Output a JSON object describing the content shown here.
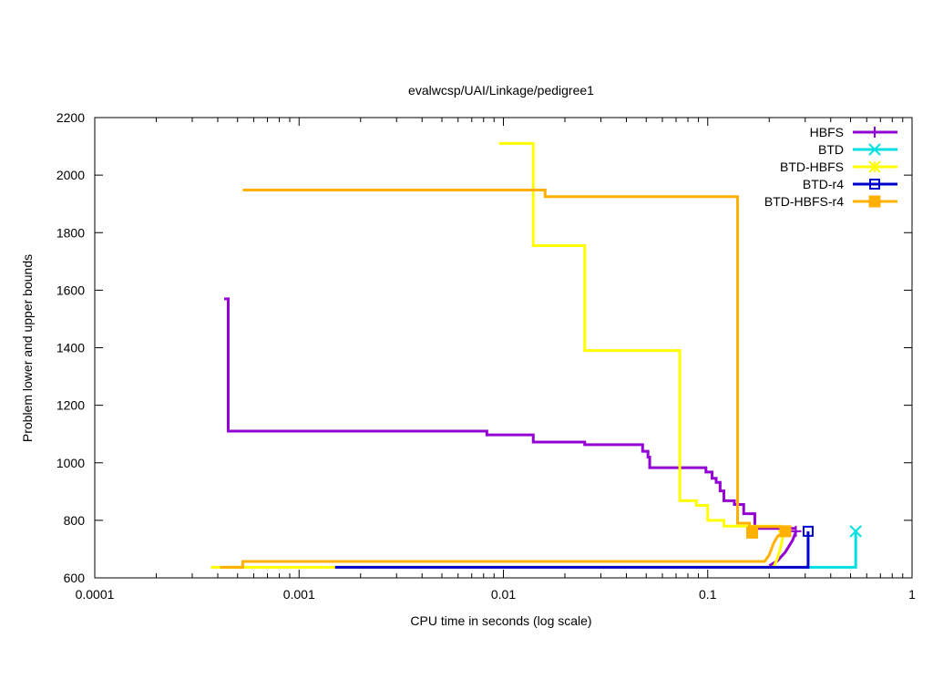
{
  "chart_data": {
    "type": "line",
    "title": "evalwcsp/UAI/Linkage/pedigree1",
    "xlabel": "CPU time in seconds (log scale)",
    "ylabel": "Problem lower and upper bounds",
    "xscale": "log",
    "xlim": [
      0.0001,
      1
    ],
    "ylim": [
      600,
      2200
    ],
    "x_ticks": [
      {
        "value": 0.0001,
        "label": "0.0001"
      },
      {
        "value": 0.001,
        "label": "0.001"
      },
      {
        "value": 0.01,
        "label": "0.01"
      },
      {
        "value": 0.1,
        "label": "0.1"
      },
      {
        "value": 1,
        "label": "1"
      }
    ],
    "y_ticks": [
      {
        "value": 600,
        "label": "600"
      },
      {
        "value": 800,
        "label": "800"
      },
      {
        "value": 1000,
        "label": "1000"
      },
      {
        "value": 1200,
        "label": "1200"
      },
      {
        "value": 1400,
        "label": "1400"
      },
      {
        "value": 1600,
        "label": "1600"
      },
      {
        "value": 1800,
        "label": "1800"
      },
      {
        "value": 2000,
        "label": "2000"
      },
      {
        "value": 2200,
        "label": "2200"
      }
    ],
    "grid": false,
    "legend_position": "top-right",
    "series": [
      {
        "name": "HBFS",
        "color": "#9400d3",
        "marker": "plus",
        "upper": [
          [
            0.00043,
            1570
          ],
          [
            0.00045,
            1570
          ],
          [
            0.00045,
            1110
          ],
          [
            0.0083,
            1110
          ],
          [
            0.0083,
            1097
          ],
          [
            0.014,
            1097
          ],
          [
            0.014,
            1072
          ],
          [
            0.025,
            1072
          ],
          [
            0.025,
            1063
          ],
          [
            0.048,
            1063
          ],
          [
            0.048,
            1040
          ],
          [
            0.051,
            1040
          ],
          [
            0.051,
            1020
          ],
          [
            0.052,
            1020
          ],
          [
            0.052,
            983
          ],
          [
            0.098,
            983
          ],
          [
            0.098,
            968
          ],
          [
            0.105,
            968
          ],
          [
            0.105,
            946
          ],
          [
            0.11,
            946
          ],
          [
            0.11,
            932
          ],
          [
            0.115,
            932
          ],
          [
            0.115,
            902
          ],
          [
            0.12,
            902
          ],
          [
            0.12,
            868
          ],
          [
            0.135,
            868
          ],
          [
            0.135,
            855
          ],
          [
            0.15,
            855
          ],
          [
            0.15,
            823
          ],
          [
            0.17,
            823
          ],
          [
            0.17,
            772
          ],
          [
            0.27,
            772
          ]
        ],
        "lower": [
          [
            0.2,
            642
          ],
          [
            0.22,
            660
          ],
          [
            0.24,
            690
          ],
          [
            0.26,
            730
          ],
          [
            0.27,
            760
          ]
        ],
        "end_point": [
          0.27,
          762
        ]
      },
      {
        "name": "BTD",
        "color": "#00e0e0",
        "marker": "x",
        "upper": [
          [
            0.53,
            762
          ]
        ],
        "lower": [
          [
            0.3,
            637
          ],
          [
            0.53,
            637
          ],
          [
            0.53,
            762
          ]
        ],
        "end_point": [
          0.53,
          762
        ]
      },
      {
        "name": "BTD-HBFS",
        "color": "#ffff00",
        "marker": "star",
        "upper": [
          [
            0.0095,
            2110
          ],
          [
            0.014,
            2110
          ],
          [
            0.014,
            1755
          ],
          [
            0.025,
            1755
          ],
          [
            0.025,
            1390
          ],
          [
            0.073,
            1390
          ],
          [
            0.073,
            868
          ],
          [
            0.088,
            868
          ],
          [
            0.088,
            852
          ],
          [
            0.1,
            852
          ],
          [
            0.1,
            800
          ],
          [
            0.12,
            800
          ],
          [
            0.12,
            780
          ],
          [
            0.23,
            780
          ]
        ],
        "lower": [
          [
            0.00037,
            637
          ],
          [
            0.21,
            637
          ],
          [
            0.22,
            670
          ],
          [
            0.23,
            720
          ],
          [
            0.235,
            762
          ]
        ],
        "end_point": [
          0.235,
          762
        ]
      },
      {
        "name": "BTD-r4",
        "color": "#0000cc",
        "marker": "open-square",
        "upper": [
          [
            0.31,
            762
          ]
        ],
        "lower": [
          [
            0.0015,
            637
          ],
          [
            0.31,
            637
          ],
          [
            0.31,
            762
          ]
        ],
        "end_point": [
          0.31,
          762
        ]
      },
      {
        "name": "BTD-HBFS-r4",
        "color": "#ffb000",
        "marker": "filled-square",
        "upper": [
          [
            0.00053,
            1948
          ],
          [
            0.016,
            1948
          ],
          [
            0.016,
            1925
          ],
          [
            0.14,
            1925
          ],
          [
            0.14,
            790
          ],
          [
            0.16,
            790
          ],
          [
            0.16,
            778
          ],
          [
            0.23,
            778
          ]
        ],
        "lower": [
          [
            0.00041,
            637
          ],
          [
            0.00053,
            637
          ],
          [
            0.00053,
            657
          ],
          [
            0.19,
            657
          ],
          [
            0.2,
            680
          ],
          [
            0.21,
            720
          ],
          [
            0.22,
            745
          ],
          [
            0.24,
            762
          ]
        ],
        "end_point": [
          0.24,
          762
        ],
        "extra_marker": [
          0.165,
          757
        ]
      }
    ]
  }
}
